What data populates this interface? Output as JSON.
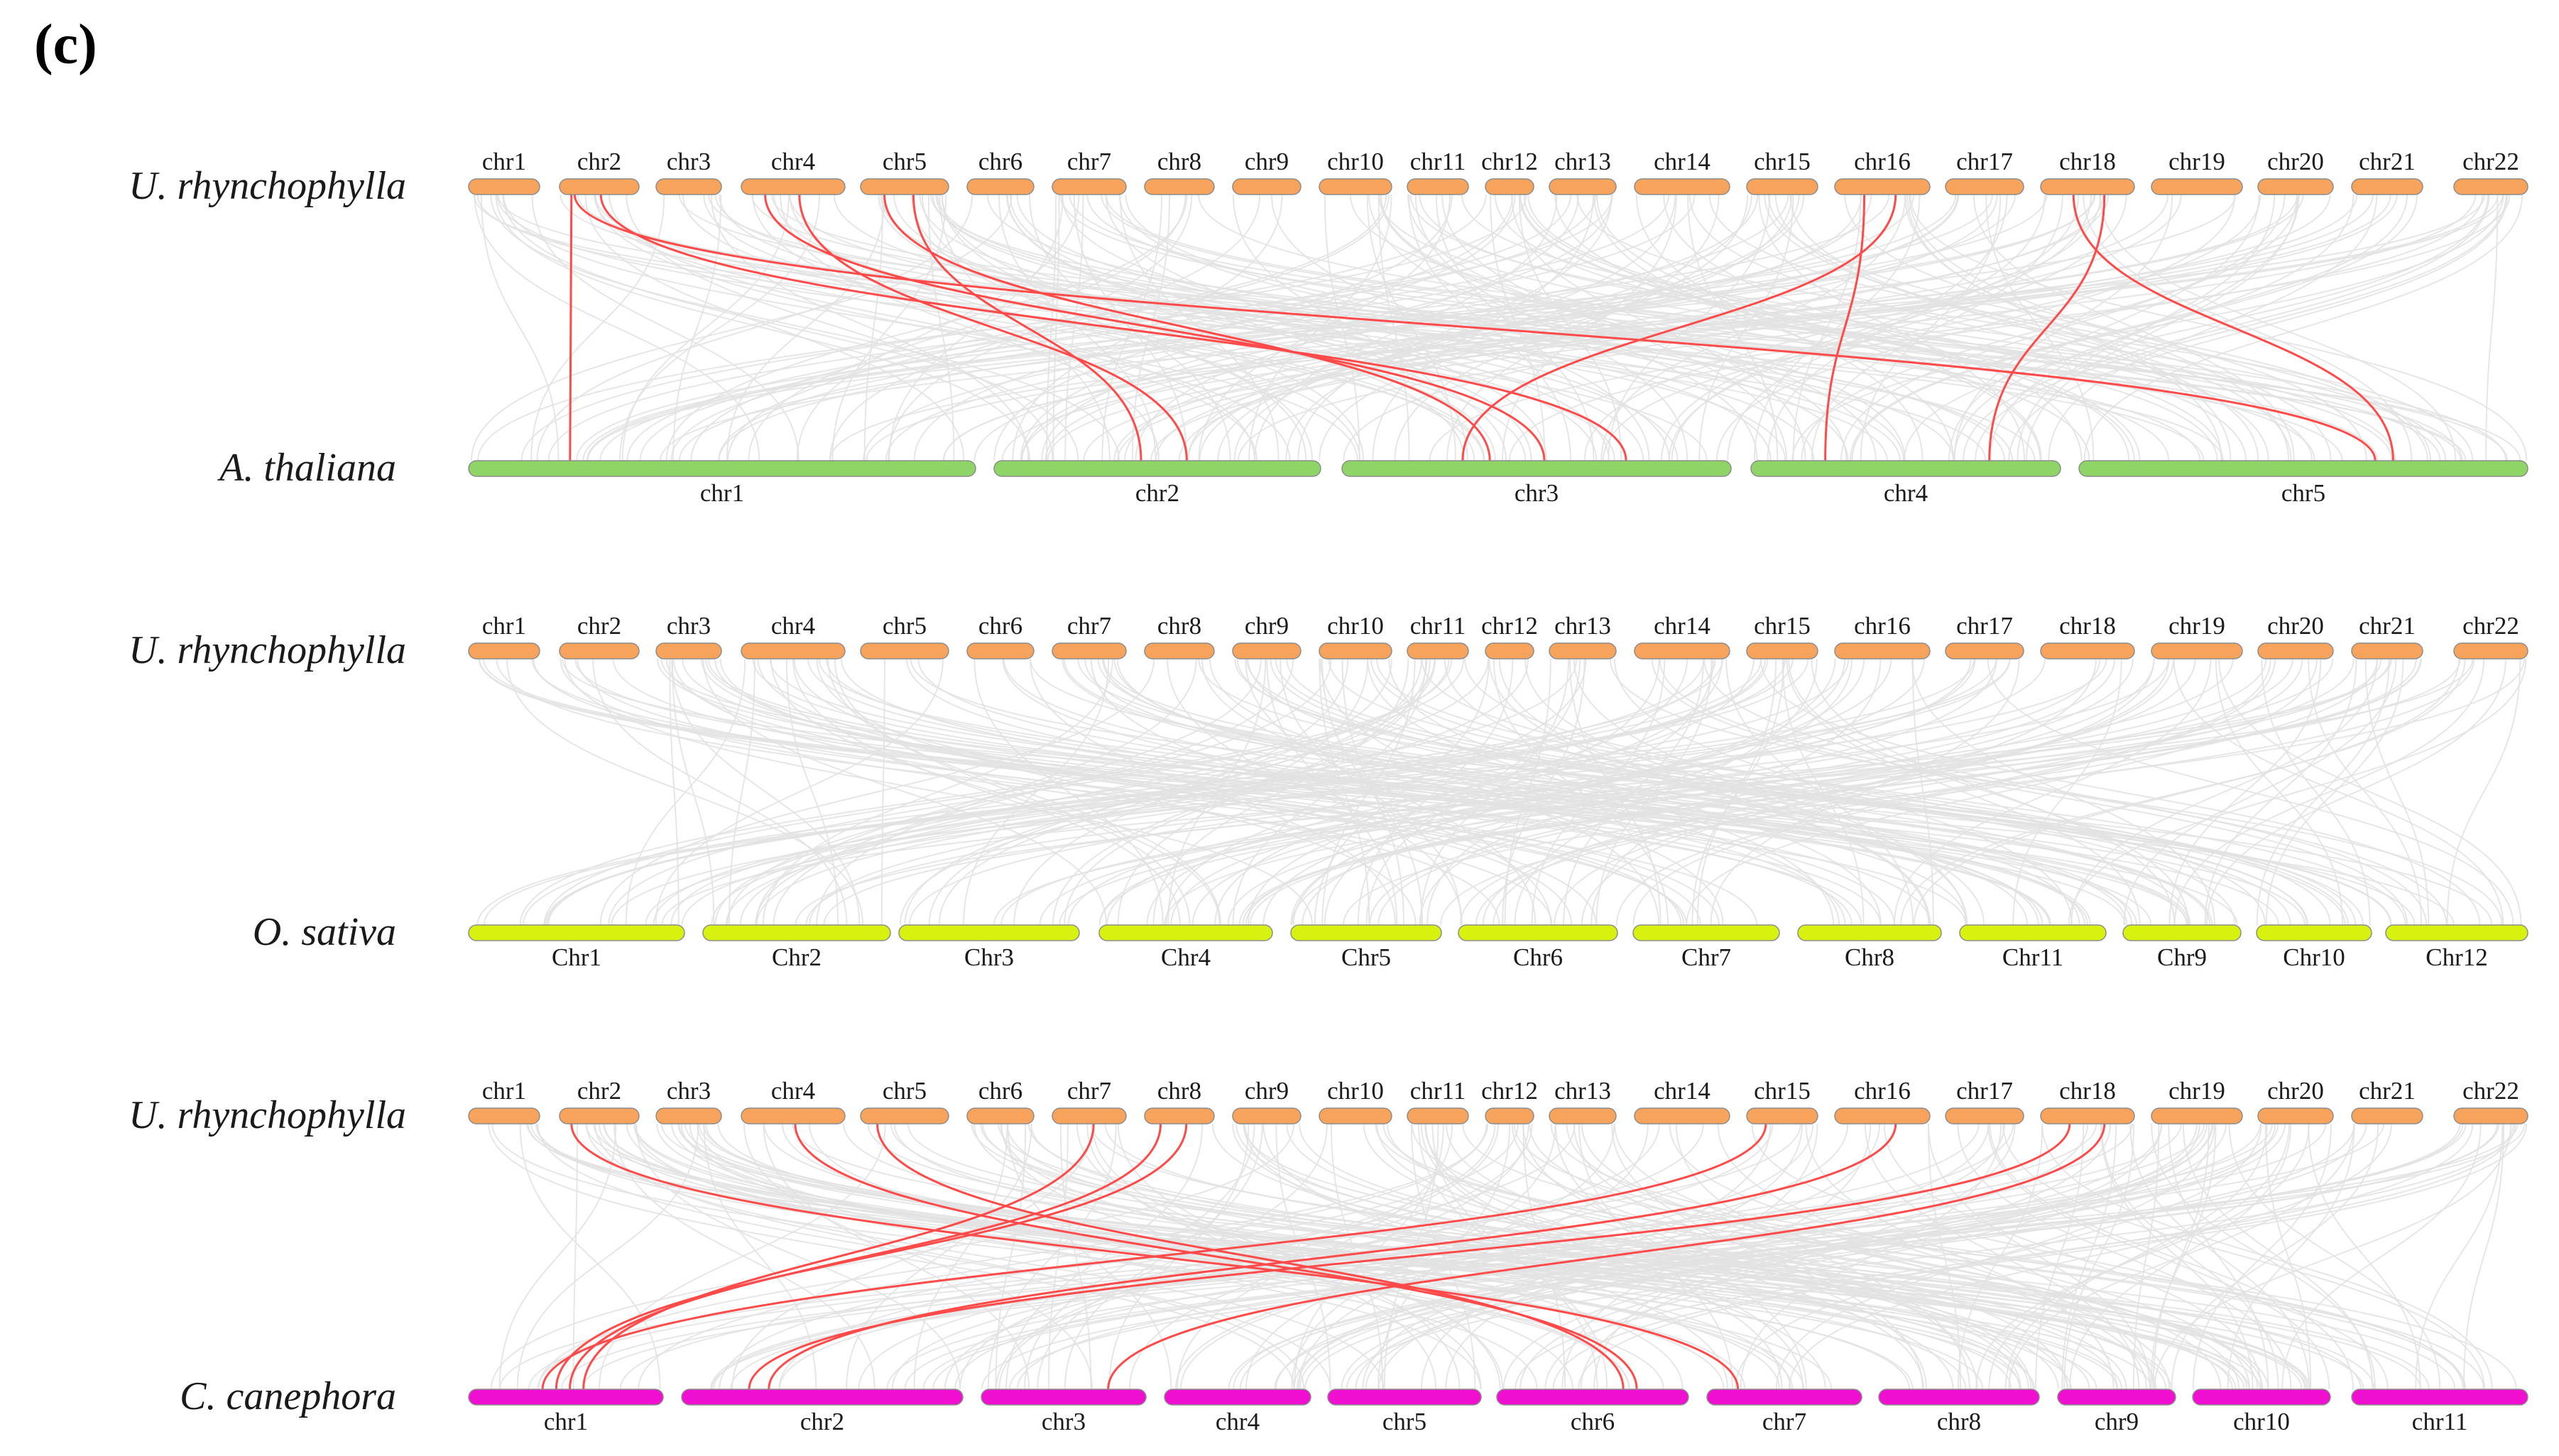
{
  "panel_label": "(c)",
  "focal_species": "U. rhynchophylla",
  "colors": {
    "focal": "#f7a35c",
    "arabidopsis": "#8ed466",
    "rice": "#d8f20f",
    "coffee": "#f00ed0",
    "background_links": "#e2e2e2",
    "highlight_links": "#ff4a4a"
  },
  "focal_chromosomes": [
    "chr1",
    "chr2",
    "chr3",
    "chr4",
    "chr5",
    "chr6",
    "chr7",
    "chr8",
    "chr9",
    "chr10",
    "chr11",
    "chr12",
    "chr13",
    "chr14",
    "chr15",
    "chr16",
    "chr17",
    "chr18",
    "chr19",
    "chr20",
    "chr21",
    "chr22"
  ],
  "comparisons": [
    {
      "id": "arabidopsis",
      "top_species": "U. rhynchophylla",
      "bottom_species": "A. thaliana",
      "bottom_chromosomes": [
        "chr1",
        "chr2",
        "chr3",
        "chr4",
        "chr5"
      ],
      "highlighted_links": [
        {
          "from": "chr2",
          "to": "chr1"
        },
        {
          "from": "chr2",
          "to": "chr3"
        },
        {
          "from": "chr2",
          "to": "chr5"
        },
        {
          "from": "chr4",
          "to": "chr2"
        },
        {
          "from": "chr4",
          "to": "chr3"
        },
        {
          "from": "chr5",
          "to": "chr2"
        },
        {
          "from": "chr5",
          "to": "chr3"
        },
        {
          "from": "chr16",
          "to": "chr3"
        },
        {
          "from": "chr16",
          "to": "chr4"
        },
        {
          "from": "chr18",
          "to": "chr4"
        },
        {
          "from": "chr18",
          "to": "chr5"
        }
      ]
    },
    {
      "id": "rice",
      "top_species": "U. rhynchophylla",
      "bottom_species": "O. sativa",
      "bottom_chromosomes": [
        "Chr1",
        "Chr2",
        "Chr3",
        "Chr4",
        "Chr5",
        "Chr6",
        "Chr7",
        "Chr8",
        "Chr11",
        "Chr9",
        "Chr10",
        "Chr12"
      ],
      "highlighted_links": []
    },
    {
      "id": "coffee",
      "top_species": "U. rhynchophylla",
      "bottom_species": "C. canephora",
      "bottom_chromosomes": [
        "chr1",
        "chr2",
        "chr3",
        "chr4",
        "chr5",
        "chr6",
        "chr7",
        "chr8",
        "chr9",
        "chr10",
        "chr11"
      ],
      "highlighted_links": [
        {
          "from": "chr2",
          "to": "chr7"
        },
        {
          "from": "chr4",
          "to": "chr6"
        },
        {
          "from": "chr5",
          "to": "chr6"
        },
        {
          "from": "chr7",
          "to": "chr1"
        },
        {
          "from": "chr8",
          "to": "chr1"
        },
        {
          "from": "chr8",
          "to": "chr1"
        },
        {
          "from": "chr15",
          "to": "chr1"
        },
        {
          "from": "chr16",
          "to": "chr2"
        },
        {
          "from": "chr18",
          "to": "chr2"
        },
        {
          "from": "chr18",
          "to": "chr3"
        }
      ]
    }
  ]
}
